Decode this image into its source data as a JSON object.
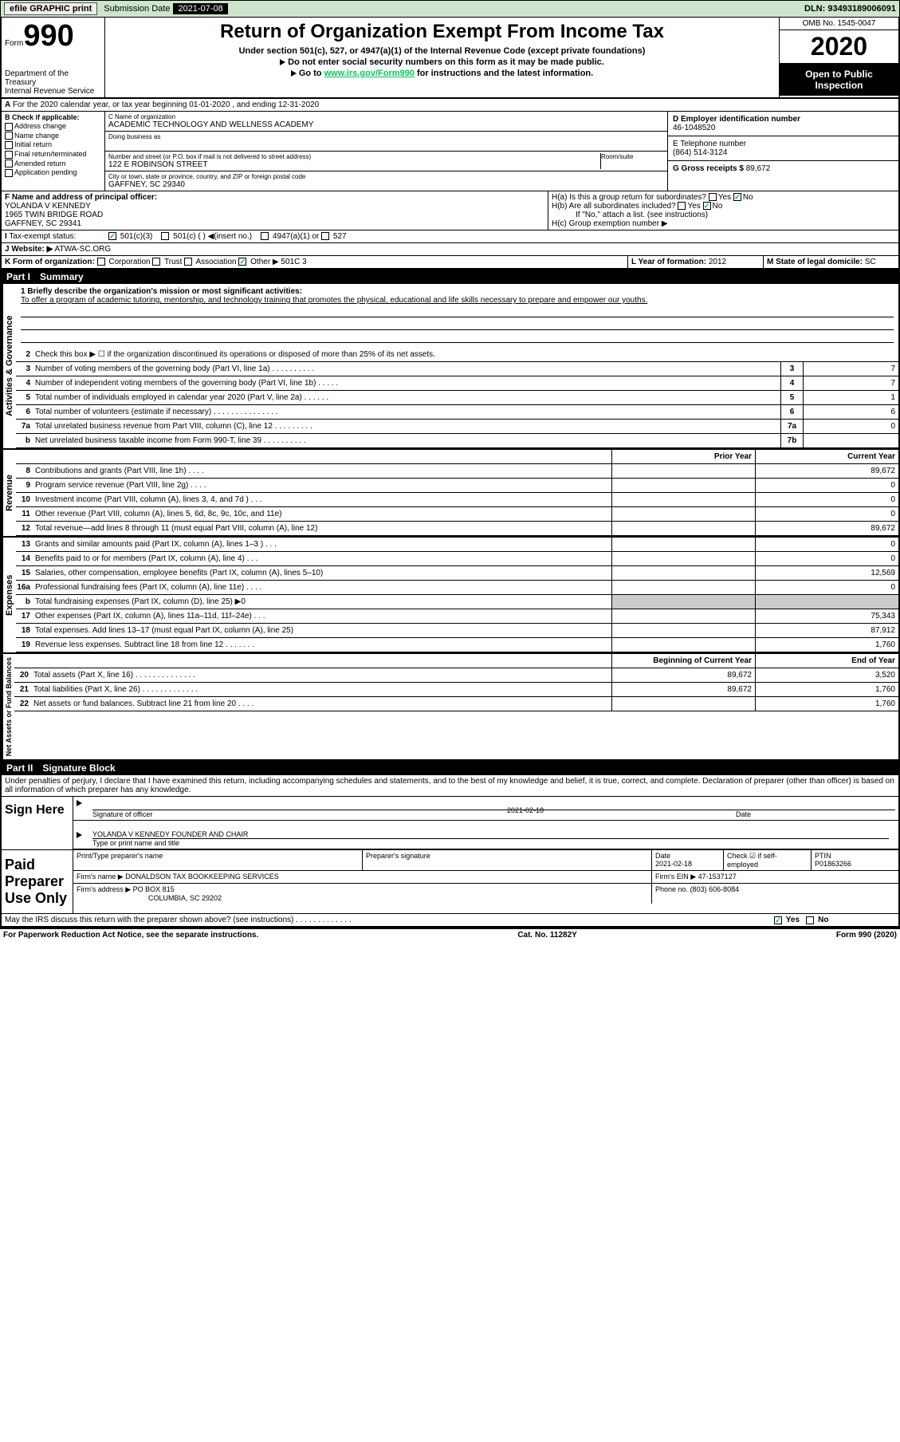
{
  "topbar": {
    "efile_label": "efile GRAPHIC print",
    "submission_label": "Submission Date",
    "submission_date": "2021-07-08",
    "dln_label": "DLN:",
    "dln": "93493189006091"
  },
  "header": {
    "form_word": "Form",
    "form_num": "990",
    "dept": "Department of the Treasury\nInternal Revenue Service",
    "title": "Return of Organization Exempt From Income Tax",
    "subtitle": "Under section 501(c), 527, or 4947(a)(1) of the Internal Revenue Code (except private foundations)",
    "note1": "Do not enter social security numbers on this form as it may be made public.",
    "note2_pre": "Go to ",
    "note2_link": "www.irs.gov/Form990",
    "note2_post": " for instructions and the latest information.",
    "omb": "OMB No. 1545-0047",
    "year": "2020",
    "inspect": "Open to Public Inspection"
  },
  "rowA": "For the 2020 calendar year, or tax year beginning 01-01-2020    , and ending 12-31-2020",
  "B": {
    "label": "B Check if applicable:",
    "items": [
      "Address change",
      "Name change",
      "Initial return",
      "Final return/terminated",
      "Amended return",
      "Application pending"
    ]
  },
  "C": {
    "name_lbl": "C Name of organization",
    "name": "ACADEMIC TECHNOLOGY AND WELLNESS ACADEMY",
    "dba_lbl": "Doing business as",
    "street_lbl": "Number and street (or P.O. box if mail is not delivered to street address)",
    "room_lbl": "Room/suite",
    "street": "122 E ROBINSON STREET",
    "city_lbl": "City or town, state or province, country, and ZIP or foreign postal code",
    "city": "GAFFNEY, SC  29340"
  },
  "D": {
    "lbl": "D Employer identification number",
    "val": "46-1048520"
  },
  "E": {
    "lbl": "E Telephone number",
    "val": "(864) 514-3124"
  },
  "G": {
    "lbl": "G Gross receipts $",
    "val": "89,672"
  },
  "F": {
    "lbl": "F  Name and address of principal officer:",
    "name": "YOLANDA V KENNEDY",
    "addr1": "1965 TWIN BRIDGE ROAD",
    "addr2": "GAFFNEY, SC  29341"
  },
  "H": {
    "a": "H(a)  Is this a group return for subordinates?",
    "b": "H(b)  Are all subordinates included?",
    "b_note": "If \"No,\" attach a list. (see instructions)",
    "c": "H(c)  Group exemption number ▶",
    "yes": "Yes",
    "no": "No"
  },
  "I": {
    "lbl": "Tax-exempt status:",
    "o1": "501(c)(3)",
    "o2": "501(c) (  ) ◀(insert no.)",
    "o3": "4947(a)(1) or",
    "o4": "527"
  },
  "J": {
    "lbl": "Website: ▶",
    "val": "ATWA-SC.ORG"
  },
  "K": {
    "lbl": "K Form of organization:",
    "opts": [
      "Corporation",
      "Trust",
      "Association",
      "Other ▶"
    ],
    "other": "501C 3"
  },
  "L": {
    "lbl": "L Year of formation:",
    "val": "2012"
  },
  "M": {
    "lbl": "M State of legal domicile:",
    "val": "SC"
  },
  "part1": {
    "label": "Part I",
    "title": "Summary"
  },
  "mission": {
    "lbl": "1  Briefly describe the organization's mission or most significant activities:",
    "text": "To offer a program of academic tutoring, mentorship, and technology training that promotes the physical, educational and life skills necessary to prepare and empower our youths."
  },
  "line2": "Check this box ▶ ☐  if the organization discontinued its operations or disposed of more than 25% of its net assets.",
  "sections": {
    "governance": "Activities & Governance",
    "revenue": "Revenue",
    "expenses": "Expenses",
    "net": "Net Assets or Fund Balances"
  },
  "gov_lines": [
    {
      "n": "3",
      "t": "Number of voting members of the governing body (Part VI, line 1a)  .  .  .  .  .  .  .  .  .  .",
      "box": "3",
      "v": "7"
    },
    {
      "n": "4",
      "t": "Number of independent voting members of the governing body (Part VI, line 1b)  .  .  .  .  .",
      "box": "4",
      "v": "7"
    },
    {
      "n": "5",
      "t": "Total number of individuals employed in calendar year 2020 (Part V, line 2a)  .  .  .  .  .  .",
      "box": "5",
      "v": "1"
    },
    {
      "n": "6",
      "t": "Total number of volunteers (estimate if necessary)   .  .  .  .  .  .  .  .  .  .  .  .  .  .  .",
      "box": "6",
      "v": "6"
    },
    {
      "n": "7a",
      "t": "Total unrelated business revenue from Part VIII, column (C), line 12  .  .  .  .  .  .  .  .  .",
      "box": "7a",
      "v": "0"
    },
    {
      "n": "b",
      "t": "Net unrelated business taxable income from Form 990-T, line 39   .  .  .  .  .  .  .  .  .  .",
      "box": "7b",
      "v": ""
    }
  ],
  "col_hdrs": {
    "prior": "Prior Year",
    "current": "Current Year",
    "boy": "Beginning of Current Year",
    "eoy": "End of Year"
  },
  "rev_lines": [
    {
      "n": "8",
      "t": "Contributions and grants (Part VIII, line 1h)   .  .  .  .",
      "p": "",
      "c": "89,672"
    },
    {
      "n": "9",
      "t": "Program service revenue (Part VIII, line 2g)  .  .  .  .",
      "p": "",
      "c": "0"
    },
    {
      "n": "10",
      "t": "Investment income (Part VIII, column (A), lines 3, 4, and 7d )   .  .  .",
      "p": "",
      "c": "0"
    },
    {
      "n": "11",
      "t": "Other revenue (Part VIII, column (A), lines 5, 6d, 8c, 9c, 10c, and 11e)",
      "p": "",
      "c": "0"
    },
    {
      "n": "12",
      "t": "Total revenue—add lines 8 through 11 (must equal Part VIII, column (A), line 12)",
      "p": "",
      "c": "89,672"
    }
  ],
  "exp_lines": [
    {
      "n": "13",
      "t": "Grants and similar amounts paid (Part IX, column (A), lines 1–3 )  .  .  .",
      "p": "",
      "c": "0"
    },
    {
      "n": "14",
      "t": "Benefits paid to or for members (Part IX, column (A), line 4)  .  .  .",
      "p": "",
      "c": "0"
    },
    {
      "n": "15",
      "t": "Salaries, other compensation, employee benefits (Part IX, column (A), lines 5–10)",
      "p": "",
      "c": "12,569"
    },
    {
      "n": "16a",
      "t": "Professional fundraising fees (Part IX, column (A), line 11e)  .  .  .  .",
      "p": "",
      "c": "0"
    },
    {
      "n": "b",
      "t": "Total fundraising expenses (Part IX, column (D), line 25) ▶0",
      "p": "shade",
      "c": "shade"
    },
    {
      "n": "17",
      "t": "Other expenses (Part IX, column (A), lines 11a–11d, 11f–24e)  .  .  .",
      "p": "",
      "c": "75,343"
    },
    {
      "n": "18",
      "t": "Total expenses. Add lines 13–17 (must equal Part IX, column (A), line 25)",
      "p": "",
      "c": "87,912"
    },
    {
      "n": "19",
      "t": "Revenue less expenses. Subtract line 18 from line 12  .  .  .  .  .  .  .",
      "p": "",
      "c": "1,760"
    }
  ],
  "net_lines": [
    {
      "n": "20",
      "t": "Total assets (Part X, line 16)  .  .  .  .  .  .  .  .  .  .  .  .  .  .",
      "p": "89,672",
      "c": "3,520"
    },
    {
      "n": "21",
      "t": "Total liabilities (Part X, line 26)  .  .  .  .  .  .  .  .  .  .  .  .  .",
      "p": "89,672",
      "c": "1,760"
    },
    {
      "n": "22",
      "t": "Net assets or fund balances. Subtract line 21 from line 20   .  .  .  .",
      "p": "",
      "c": "1,760"
    }
  ],
  "part2": {
    "label": "Part II",
    "title": "Signature Block"
  },
  "penalties": "Under penalties of perjury, I declare that I have examined this return, including accompanying schedules and statements, and to the best of my knowledge and belief, it is true, correct, and complete. Declaration of preparer (other than officer) is based on all information of which preparer has any knowledge.",
  "sign": {
    "here": "Sign Here",
    "sig_lbl": "Signature of officer",
    "date_lbl": "Date",
    "date": "2021-02-18",
    "name": "YOLANDA V KENNEDY FOUNDER AND CHAIR",
    "name_lbl": "Type or print name and title"
  },
  "paid": {
    "title": "Paid Preparer Use Only",
    "print_lbl": "Print/Type preparer's name",
    "sig_lbl": "Preparer's signature",
    "date_lbl": "Date",
    "date": "2021-02-18",
    "check_lbl": "Check ☑ if self-employed",
    "ptin_lbl": "PTIN",
    "ptin": "P01863266",
    "firm_name_lbl": "Firm's name    ▶",
    "firm_name": "DONALDSON TAX BOOKKEEPING SERVICES",
    "firm_ein_lbl": "Firm's EIN ▶",
    "firm_ein": "47-1537127",
    "firm_addr_lbl": "Firm's address ▶",
    "firm_addr1": "PO BOX 815",
    "firm_addr2": "COLUMBIA, SC  29202",
    "phone_lbl": "Phone no.",
    "phone": "(803) 606-8084"
  },
  "irs_discuss": "May the IRS discuss this return with the preparer shown above? (see instructions)   .  .  .  .  .  .  .  .  .  .  .  .  .",
  "footer": {
    "left": "For Paperwork Reduction Act Notice, see the separate instructions.",
    "mid": "Cat. No. 11282Y",
    "right": "Form 990 (2020)"
  }
}
